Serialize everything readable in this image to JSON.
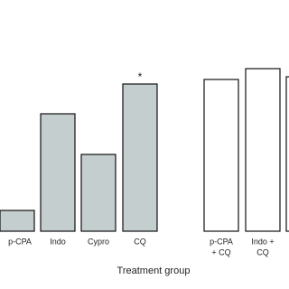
{
  "chart_data": {
    "type": "bar",
    "x_label": "Treatment group",
    "categories": [
      [
        "p-CPA"
      ],
      [
        "Indo"
      ],
      [
        "Cypro"
      ],
      [
        "CQ"
      ],
      [
        "p-CPA",
        "+ CQ"
      ],
      [
        "Indo +",
        "CQ"
      ],
      null
    ],
    "values": [
      23,
      130,
      85,
      163,
      168,
      180,
      171
    ],
    "colors": [
      "#c5cece",
      "#c5cece",
      "#c5cece",
      "#c5cece",
      "#ffffff",
      "#ffffff",
      "#ffffff"
    ],
    "ylim": [
      0,
      200
    ],
    "annotations": [
      {
        "text": "*",
        "category": "CQ"
      }
    ]
  }
}
